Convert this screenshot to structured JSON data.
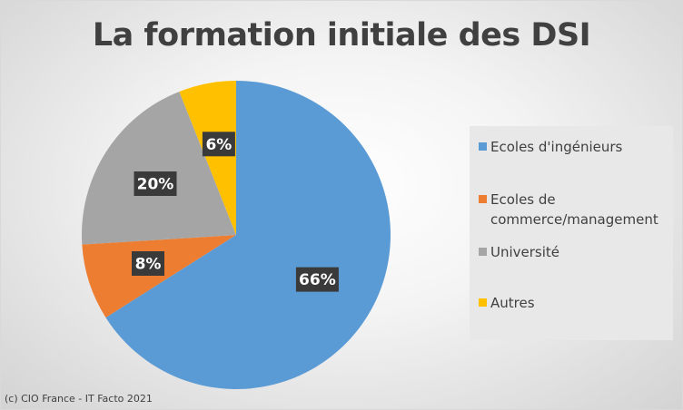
{
  "chart_data": {
    "type": "pie",
    "title": "La formation initiale des DSI",
    "categories": [
      "Ecoles d'ingénieurs",
      "Ecoles de commerce/management",
      "Université",
      "Autres"
    ],
    "values": [
      66,
      8,
      20,
      6
    ],
    "data_labels": [
      "66%",
      "8%",
      "20%",
      "6%"
    ],
    "colors": [
      "#5b9bd5",
      "#ed7d31",
      "#a5a5a5",
      "#ffc000"
    ],
    "legend": {
      "placement": "right",
      "entries": [
        [
          "Ecoles d'ingénieurs"
        ],
        [
          "Ecoles de",
          "commerce/management"
        ],
        [
          "Université"
        ],
        [
          "Autres"
        ]
      ]
    }
  },
  "credit": "(c) CIO France - IT Facto 2021"
}
